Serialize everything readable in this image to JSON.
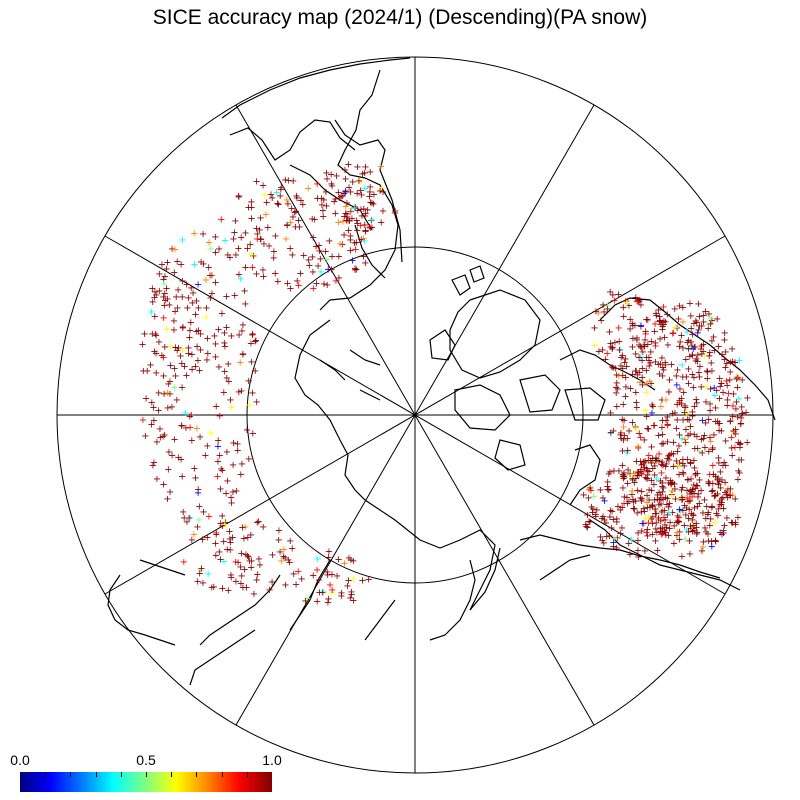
{
  "title": "SICE accuracy map (2024/1) (Descending)(PA snow)",
  "colorbar": {
    "labels": [
      "0.0",
      "0.5",
      "1.0"
    ],
    "min": 0.0,
    "max": 1.0,
    "colors": [
      "#000080",
      "#0000ff",
      "#0080ff",
      "#00ffff",
      "#80ff80",
      "#ffff00",
      "#ff8000",
      "#ff0000",
      "#800000"
    ]
  },
  "map": {
    "projection": "north polar stereographic",
    "graticule_latitudes": [
      60
    ],
    "meridian_count": 12,
    "marker_symbol": "+",
    "dominant_marker_color": "#8b0000",
    "coastline_color": "#000000"
  }
}
